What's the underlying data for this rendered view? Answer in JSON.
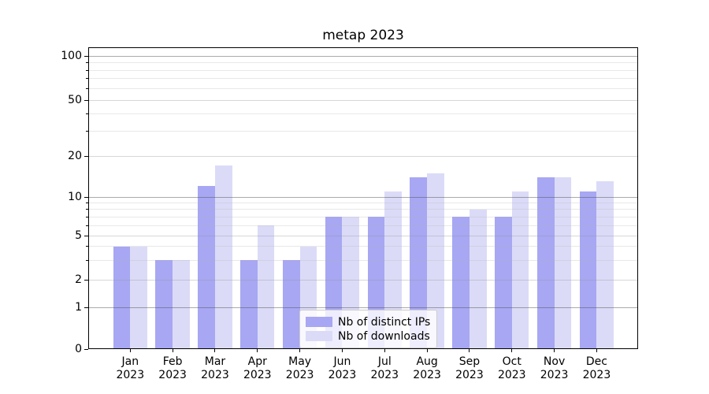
{
  "title": "metap 2023",
  "accent_colors": {
    "distinct_ips_bar": "#a7a7f3",
    "downloads_bar": "#dbdbf8",
    "axis": "#000000",
    "grid_major": "#b5b5b5",
    "grid_minor": "#e7e7e7"
  },
  "chart_data": {
    "type": "bar",
    "title": "metap 2023",
    "categories": [
      "Jan 2023",
      "Feb 2023",
      "Mar 2023",
      "Apr 2023",
      "May 2023",
      "Jun 2023",
      "Jul 2023",
      "Aug 2023",
      "Sep 2023",
      "Oct 2023",
      "Nov 2023",
      "Dec 2023"
    ],
    "months": [
      "Jan",
      "Feb",
      "Mar",
      "Apr",
      "May",
      "Jun",
      "Jul",
      "Aug",
      "Sep",
      "Oct",
      "Nov",
      "Dec"
    ],
    "x_label_year": "2023",
    "series": [
      {
        "name": "Nb of distinct IPs",
        "color": "#a7a7f3",
        "values": [
          4,
          3,
          12,
          3,
          3,
          7,
          7,
          14,
          7,
          7,
          14,
          11
        ]
      },
      {
        "name": "Nb of downloads",
        "color": "#dbdbf8",
        "values": [
          4,
          3,
          17,
          6,
          4,
          7,
          11,
          15,
          8,
          11,
          14,
          13
        ]
      }
    ],
    "xlabel": "",
    "ylabel": "",
    "y_axis": {
      "scale": "log-like (0 shown at baseline)",
      "ylim": [
        0,
        115
      ],
      "tick_labels": [
        0,
        1,
        2,
        5,
        10,
        20,
        50,
        100
      ],
      "major_gridlines": [
        1,
        10,
        100
      ],
      "labeled_minor_gridlines": [
        2,
        5,
        20,
        50
      ],
      "minor_gridlines": [
        3,
        4,
        6,
        7,
        8,
        9,
        30,
        40,
        60,
        70,
        80,
        90
      ]
    },
    "grid": true,
    "legend_position": "lower center, inside plot"
  },
  "legend": {
    "items": [
      {
        "label": "Nb of distinct IPs"
      },
      {
        "label": "Nb of downloads"
      }
    ]
  }
}
